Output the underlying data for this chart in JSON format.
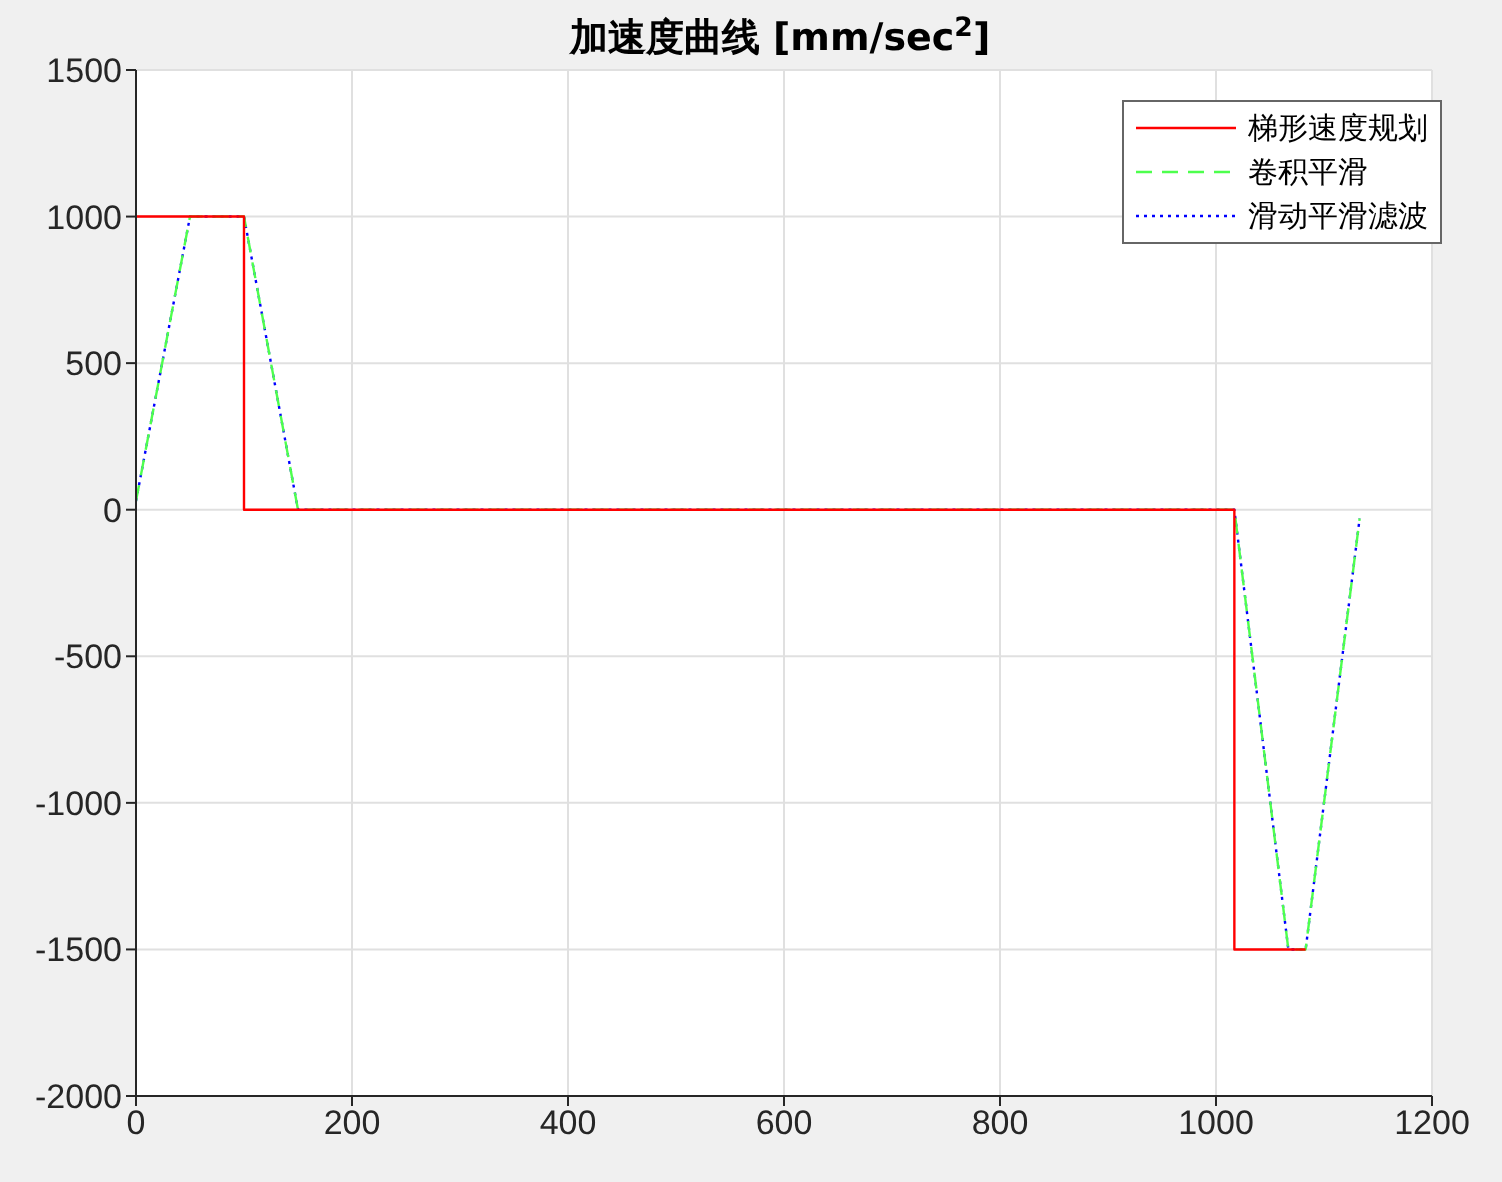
{
  "chart_data": {
    "type": "line",
    "title": "加速度曲线 [mm/sec$^{2}$]",
    "xlim": [
      0,
      1200
    ],
    "xticks": [
      0,
      200,
      400,
      600,
      800,
      1000,
      1200
    ],
    "ylim": [
      -2000,
      1500
    ],
    "yticks": [
      -2000,
      -1500,
      -1000,
      -500,
      0,
      500,
      1000,
      1500
    ],
    "grid": true,
    "legend": "top right",
    "marker": "none",
    "series": [
      {
        "name": "梯形速度规划",
        "color": "#ff0000",
        "line_style": "solid",
        "x": [
          0,
          100,
          100,
          1017,
          1017,
          1083
        ],
        "values": [
          1000,
          1000,
          0,
          0,
          -1500,
          -1500
        ]
      },
      {
        "name": "卷积平滑",
        "color": "#4dff4d",
        "line_style": "dashed",
        "x": [
          0,
          50,
          100,
          150,
          1017,
          1067,
          1083,
          1133
        ],
        "values": [
          30,
          1000,
          1000,
          0,
          0,
          -1500,
          -1500,
          -30
        ]
      },
      {
        "name": "滑动平滑滤波",
        "color": "#0000ff",
        "line_style": "dotted",
        "x": [
          0,
          50,
          100,
          150,
          1017,
          1067,
          1083,
          1133
        ],
        "values": [
          30,
          1000,
          1000,
          0,
          0,
          -1500,
          -1500,
          -30
        ]
      }
    ]
  }
}
